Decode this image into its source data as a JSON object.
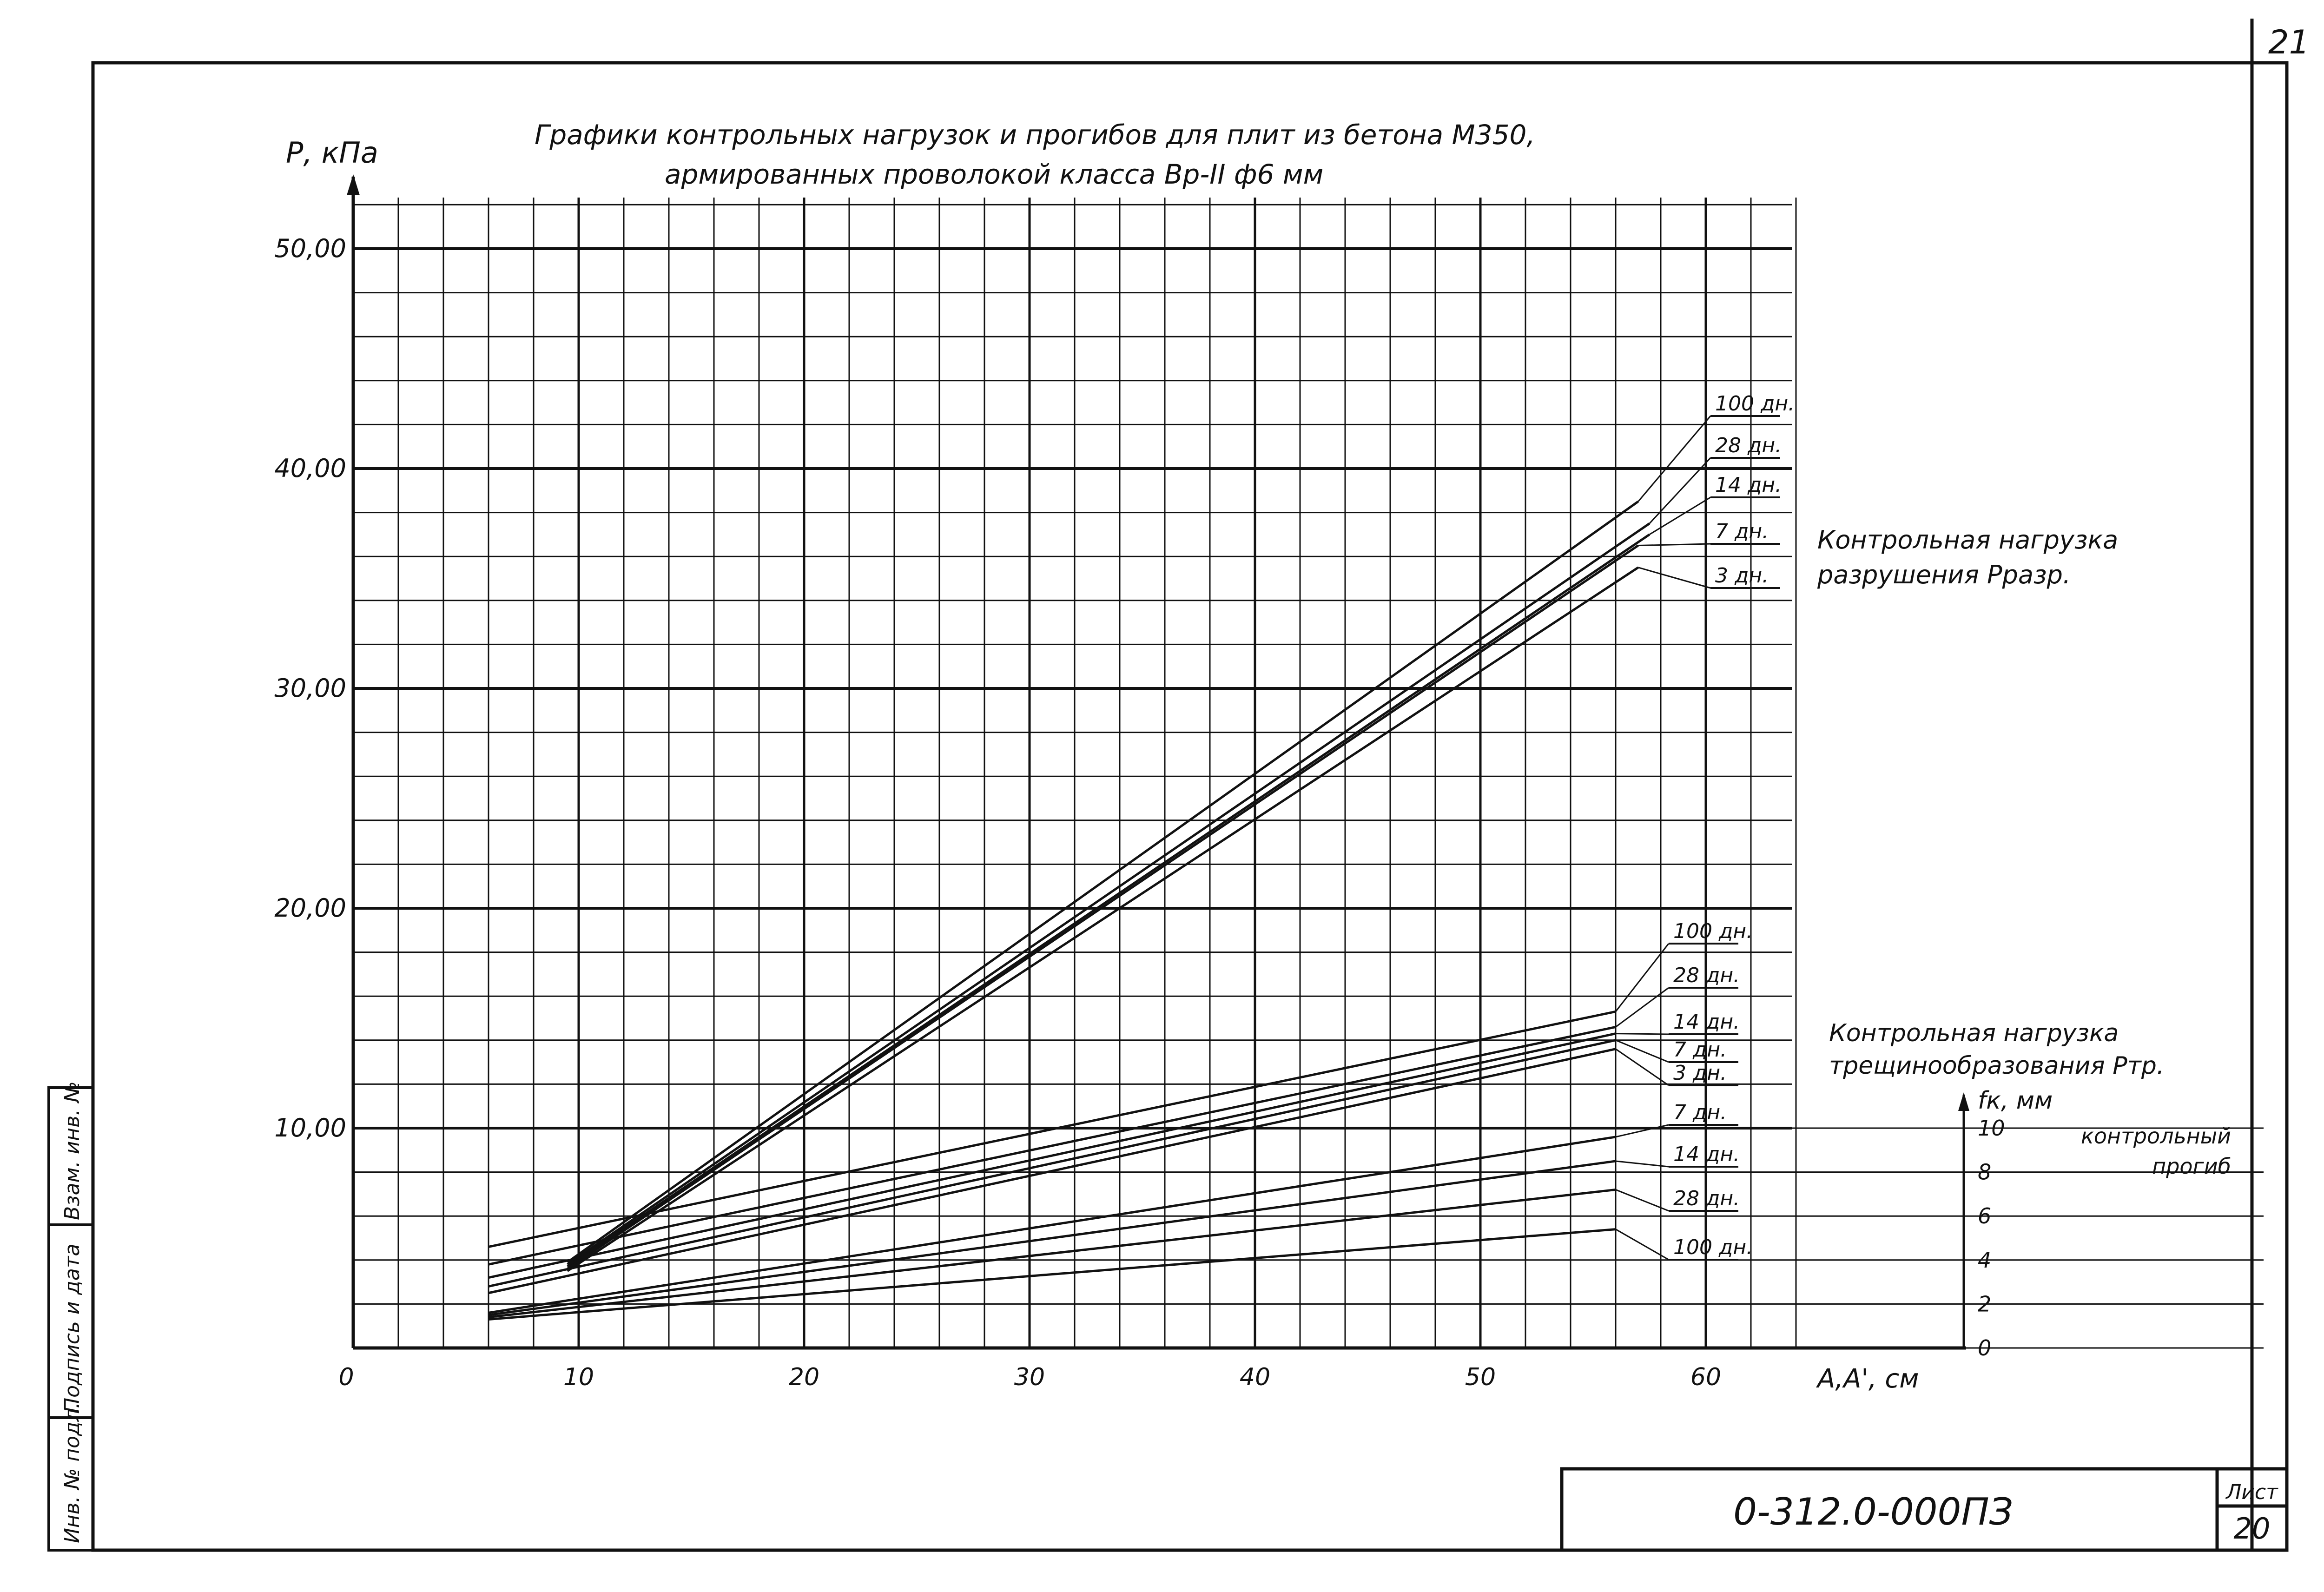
{
  "sheet": {
    "page_number": "21",
    "sheet_label": "Лист",
    "sheet_number": "20",
    "document_code": "0-312.0-000ПЗ",
    "side_stamp": [
      "Инв. № подл.",
      "Подпись и дата",
      "Взам. инв. №"
    ]
  },
  "colors": {
    "ink": "#111111",
    "paper": "#ffffff"
  },
  "chart_data": {
    "type": "line",
    "title": "Графики контрольных нагрузок и прогибов для плит из бетона М350, армированных проволокой класса Вр-II ф6 мм",
    "title_lines": [
      "Графики контрольных нагрузок и прогибов для плит из бетона М350,",
      "армированных проволокой класса Вр-II ф6 мм"
    ],
    "ylabel": "Р, кПа",
    "xlabel": "А,А', см",
    "origin_label": "0",
    "x_ticks": [
      "10",
      "20",
      "30",
      "40",
      "50",
      "60"
    ],
    "y_ticks": [
      "10,00",
      "20,00",
      "30,00",
      "40,00",
      "50,00"
    ],
    "xlim": [
      0,
      72
    ],
    "ylim": [
      0,
      52
    ],
    "grid": true,
    "secondary_axis": {
      "label": "fк, мм",
      "ticks": [
        "0",
        "2",
        "4",
        "6",
        "8",
        "10"
      ],
      "range": [
        0,
        10
      ],
      "caption": [
        "контрольный",
        "прогиб"
      ]
    },
    "groups": [
      {
        "caption": [
          "Контрольная нагрузка",
          "разрушения Рразр."
        ],
        "series": [
          {
            "name": "100 дн.",
            "x": [
              9.5,
              57.0
            ],
            "y": [
              3.9,
              38.5
            ]
          },
          {
            "name": "28 дн.",
            "x": [
              9.5,
              57.5
            ],
            "y": [
              3.8,
              37.5
            ]
          },
          {
            "name": "14 дн.",
            "x": [
              9.5,
              57.5
            ],
            "y": [
              3.7,
              37.0
            ]
          },
          {
            "name": "7 дн.",
            "x": [
              9.5,
              57.0
            ],
            "y": [
              3.6,
              36.5
            ]
          },
          {
            "name": "3 дн.",
            "x": [
              9.5,
              57.0
            ],
            "y": [
              3.5,
              35.5
            ]
          }
        ]
      },
      {
        "caption": [
          "Контрольная нагрузка",
          "трещинообразования Ртр."
        ],
        "series": [
          {
            "name": "100 дн.",
            "x": [
              6,
              56
            ],
            "y": [
              4.6,
              15.3
            ]
          },
          {
            "name": "28 дн.",
            "x": [
              6,
              56
            ],
            "y": [
              3.8,
              14.6
            ]
          },
          {
            "name": "14 дн.",
            "x": [
              6,
              56
            ],
            "y": [
              3.2,
              14.3
            ]
          },
          {
            "name": "7 дн.",
            "x": [
              6,
              56
            ],
            "y": [
              2.8,
              14.0
            ]
          },
          {
            "name": "3 дн.",
            "x": [
              6,
              56
            ],
            "y": [
              2.5,
              13.6
            ]
          }
        ]
      },
      {
        "caption": [
          "контрольный",
          "прогиб"
        ],
        "axis": "secondary",
        "series": [
          {
            "name": "7 дн.",
            "x": [
              6,
              56
            ],
            "y": [
              1.6,
              9.6
            ]
          },
          {
            "name": "14 дн.",
            "x": [
              6,
              56
            ],
            "y": [
              1.5,
              8.5
            ]
          },
          {
            "name": "28 дн.",
            "x": [
              6,
              56
            ],
            "y": [
              1.4,
              7.2
            ]
          },
          {
            "name": "100 дн.",
            "x": [
              6,
              56
            ],
            "y": [
              1.3,
              5.4
            ]
          }
        ]
      }
    ]
  }
}
